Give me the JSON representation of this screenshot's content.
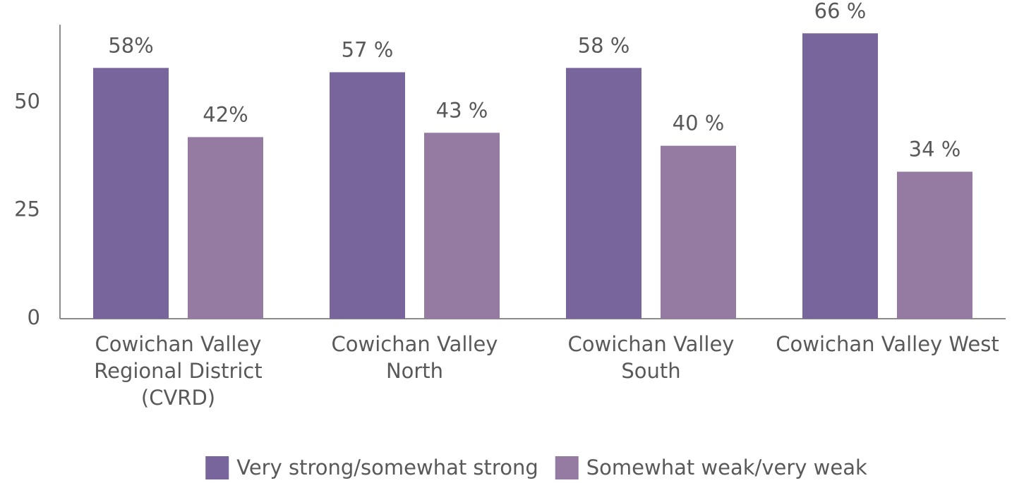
{
  "chart_data": {
    "type": "bar",
    "categories": [
      "Cowichan Valley Regional District (CVRD)",
      "Cowichan Valley North",
      "Cowichan Valley South",
      "Cowichan Valley West"
    ],
    "series": [
      {
        "name": "Very strong/somewhat strong",
        "color": "#77659b",
        "values": [
          58,
          57,
          58,
          66
        ],
        "value_labels": [
          "58%",
          "57 %",
          "58 %",
          "66 %"
        ]
      },
      {
        "name": "Somewhat weak/very weak",
        "color": "#957ba1",
        "values": [
          42,
          43,
          40,
          34
        ],
        "value_labels": [
          "42%",
          "43 %",
          "40 %",
          "34 %"
        ]
      }
    ],
    "ylim": [
      0,
      68
    ],
    "yticks": [
      0,
      25,
      50
    ],
    "grid": false,
    "legend": "bottom"
  }
}
